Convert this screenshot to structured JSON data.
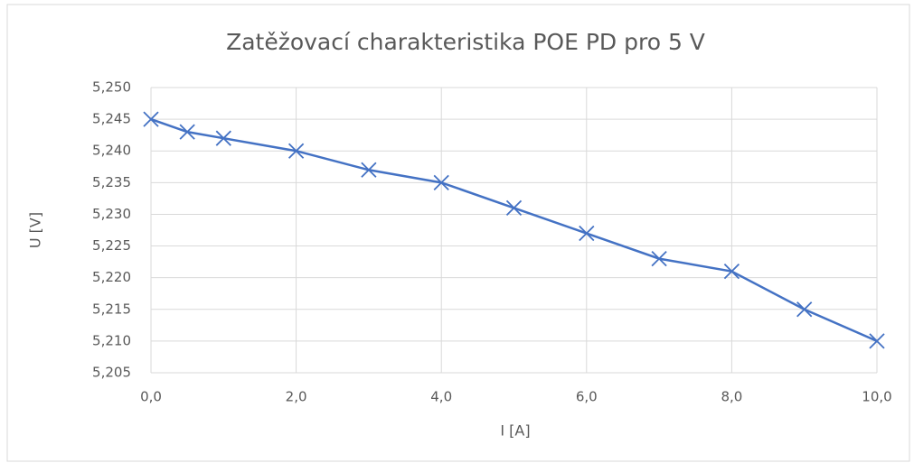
{
  "chart_data": {
    "type": "line",
    "title": "Zatěžovací charakteristika POE PD pro 5 V",
    "xlabel": "I [A]",
    "ylabel": "U [V]",
    "x": [
      0,
      0.5,
      1,
      2,
      3,
      4,
      5,
      6,
      7,
      8,
      9,
      10
    ],
    "series": [
      {
        "name": "U",
        "color": "#4472c4",
        "values": [
          5.245,
          5.243,
          5.242,
          5.24,
          5.237,
          5.235,
          5.231,
          5.227,
          5.223,
          5.221,
          5.215,
          5.21
        ]
      }
    ],
    "xlim": [
      0,
      10
    ],
    "xticks": [
      {
        "value": 0,
        "label": "0,0"
      },
      {
        "value": 2,
        "label": "2,0"
      },
      {
        "value": 4,
        "label": "4,0"
      },
      {
        "value": 6,
        "label": "6,0"
      },
      {
        "value": 8,
        "label": "8,0"
      },
      {
        "value": 10,
        "label": "10,0"
      }
    ],
    "ylim": [
      5.205,
      5.25
    ],
    "yticks": [
      {
        "value": 5.205,
        "label": "5,205"
      },
      {
        "value": 5.21,
        "label": "5,210"
      },
      {
        "value": 5.215,
        "label": "5,215"
      },
      {
        "value": 5.22,
        "label": "5,220"
      },
      {
        "value": 5.225,
        "label": "5,225"
      },
      {
        "value": 5.23,
        "label": "5,230"
      },
      {
        "value": 5.235,
        "label": "5,235"
      },
      {
        "value": 5.24,
        "label": "5,240"
      },
      {
        "value": 5.245,
        "label": "5,245"
      },
      {
        "value": 5.25,
        "label": "5,250"
      }
    ],
    "grid": true
  }
}
